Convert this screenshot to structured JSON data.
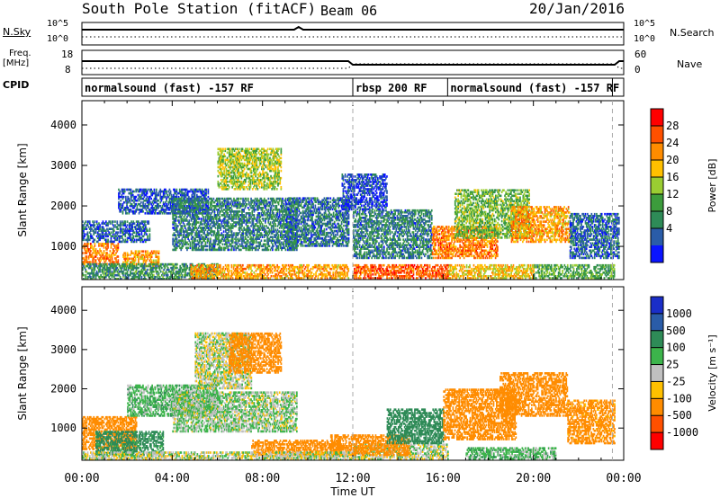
{
  "header": {
    "station": "South Pole Station (fitACF)",
    "beam": "Beam 06",
    "date": "20/Jan/2016"
  },
  "top_panels": {
    "nsky_label": "N.Sky",
    "nsky_ticks": [
      "10^5",
      "10^0"
    ],
    "nsearch_label": "N.Search",
    "nsearch_ticks": [
      "10^5",
      "10^0"
    ],
    "freq_label": "Freq.",
    "freq_unit": "[MHz]",
    "freq_ticks": [
      "18",
      "8"
    ],
    "nave_label": "Nave",
    "nave_ticks": [
      "60",
      "0"
    ],
    "cpid_label": "CPID",
    "cpid_segments": [
      {
        "label": "normalsound (fast) -157 RF",
        "start_h": 0,
        "end_h": 12
      },
      {
        "label": "rbsp 200 RF",
        "start_h": 12,
        "end_h": 16.2
      },
      {
        "label": "normalsound (fast) -157 RF",
        "start_h": 16.2,
        "end_h": 23.5
      }
    ]
  },
  "colors": {
    "grid": "#aaaaaa"
  },
  "power_colorbar": {
    "label": "Power [dB]",
    "ticks": [
      "28",
      "24",
      "20",
      "16",
      "12",
      "8",
      "4"
    ],
    "colors": [
      "#ff0000",
      "#ff5000",
      "#ff8c00",
      "#ffc000",
      "#9acd32",
      "#3c9c3c",
      "#2e8b57",
      "#2a5ca8",
      "#0a14ff"
    ]
  },
  "velocity_colorbar": {
    "label": "Velocity [m s⁻¹]",
    "ticks": [
      "1000",
      "500",
      "100",
      "25",
      "-25",
      "-100",
      "-500",
      "-1000"
    ],
    "colors": [
      "#1a2ec8",
      "#2a5ca8",
      "#2e8b57",
      "#3cb44b",
      "#c0c0c0",
      "#ffc000",
      "#ff8c00",
      "#ff5000",
      "#ff0000"
    ]
  },
  "chart_data": [
    {
      "type": "heatmap",
      "title": "Power",
      "xlabel": "Time UT",
      "ylabel": "Slant Range [km]",
      "xlim": [
        0,
        24
      ],
      "ylim": [
        180,
        4600
      ],
      "xticks": [
        "00:00",
        "04:00",
        "08:00",
        "12:00",
        "16:00",
        "20:00",
        "00:00"
      ],
      "yticks": [
        1000,
        2000,
        3000,
        4000
      ],
      "regions": [
        {
          "t": [
            0.0,
            1.6
          ],
          "r": [
            550,
            1050
          ],
          "v": 24
        },
        {
          "t": [
            1.8,
            3.4
          ],
          "r": [
            500,
            900
          ],
          "v": 22
        },
        {
          "t": [
            0.0,
            3.0
          ],
          "r": [
            1100,
            1600
          ],
          "v": 6
        },
        {
          "t": [
            0.0,
            6.0
          ],
          "r": [
            180,
            560
          ],
          "v": 10
        },
        {
          "t": [
            4.8,
            11.8
          ],
          "r": [
            200,
            560
          ],
          "v": 22
        },
        {
          "t": [
            12.0,
            16.2
          ],
          "r": [
            200,
            560
          ],
          "v": 26
        },
        {
          "t": [
            16.2,
            20.0
          ],
          "r": [
            200,
            560
          ],
          "v": 20
        },
        {
          "t": [
            20.0,
            23.6
          ],
          "r": [
            200,
            560
          ],
          "v": 12
        },
        {
          "t": [
            1.6,
            5.6
          ],
          "r": [
            1800,
            2400
          ],
          "v": 5
        },
        {
          "t": [
            4.0,
            9.5
          ],
          "r": [
            900,
            2200
          ],
          "v": 8
        },
        {
          "t": [
            6.0,
            8.8
          ],
          "r": [
            2400,
            3400
          ],
          "v": 16
        },
        {
          "t": [
            9.0,
            11.8
          ],
          "r": [
            1000,
            2200
          ],
          "v": 7
        },
        {
          "t": [
            12.0,
            15.5
          ],
          "r": [
            700,
            1900
          ],
          "v": 8
        },
        {
          "t": [
            15.5,
            18.4
          ],
          "r": [
            700,
            1500
          ],
          "v": 24
        },
        {
          "t": [
            16.5,
            19.8
          ],
          "r": [
            1200,
            2400
          ],
          "v": 14
        },
        {
          "t": [
            19.0,
            21.6
          ],
          "r": [
            1100,
            2000
          ],
          "v": 22
        },
        {
          "t": [
            21.6,
            23.8
          ],
          "r": [
            700,
            1800
          ],
          "v": 6
        },
        {
          "t": [
            11.5,
            13.5
          ],
          "r": [
            1900,
            2800
          ],
          "v": 4
        }
      ]
    },
    {
      "type": "heatmap",
      "title": "Velocity",
      "xlabel": "Time UT",
      "ylabel": "Slant Range [km]",
      "xlim": [
        0,
        24
      ],
      "ylim": [
        180,
        4600
      ],
      "xticks": [
        "00:00",
        "04:00",
        "08:00",
        "12:00",
        "16:00",
        "20:00",
        "00:00"
      ],
      "yticks": [
        1000,
        2000,
        3000,
        4000
      ],
      "regions": [
        {
          "t": [
            0.0,
            2.4
          ],
          "r": [
            450,
            1300
          ],
          "v": -200
        },
        {
          "t": [
            0.6,
            3.6
          ],
          "r": [
            300,
            900
          ],
          "v": 150
        },
        {
          "t": [
            2.0,
            6.0
          ],
          "r": [
            1300,
            2100
          ],
          "v": 60
        },
        {
          "t": [
            5.0,
            7.5
          ],
          "r": [
            2000,
            3400
          ],
          "v": 0
        },
        {
          "t": [
            6.5,
            8.8
          ],
          "r": [
            2400,
            3400
          ],
          "v": -200
        },
        {
          "t": [
            4.0,
            9.5
          ],
          "r": [
            900,
            1900
          ],
          "v": 20
        },
        {
          "t": [
            7.5,
            11.5
          ],
          "r": [
            300,
            700
          ],
          "v": -250
        },
        {
          "t": [
            12.0,
            16.2
          ],
          "r": [
            200,
            600
          ],
          "v": 0
        },
        {
          "t": [
            11.0,
            14.5
          ],
          "r": [
            300,
            800
          ],
          "v": -200
        },
        {
          "t": [
            13.5,
            16.0
          ],
          "r": [
            600,
            1500
          ],
          "v": 200
        },
        {
          "t": [
            16.0,
            19.2
          ],
          "r": [
            700,
            2000
          ],
          "v": -300
        },
        {
          "t": [
            18.5,
            21.5
          ],
          "r": [
            1300,
            2400
          ],
          "v": -350
        },
        {
          "t": [
            17.0,
            21.0
          ],
          "r": [
            200,
            500
          ],
          "v": 60
        },
        {
          "t": [
            21.5,
            23.6
          ],
          "r": [
            600,
            1700
          ],
          "v": -150
        },
        {
          "t": [
            0.0,
            12.0
          ],
          "r": [
            180,
            400
          ],
          "v": 0
        }
      ]
    }
  ]
}
